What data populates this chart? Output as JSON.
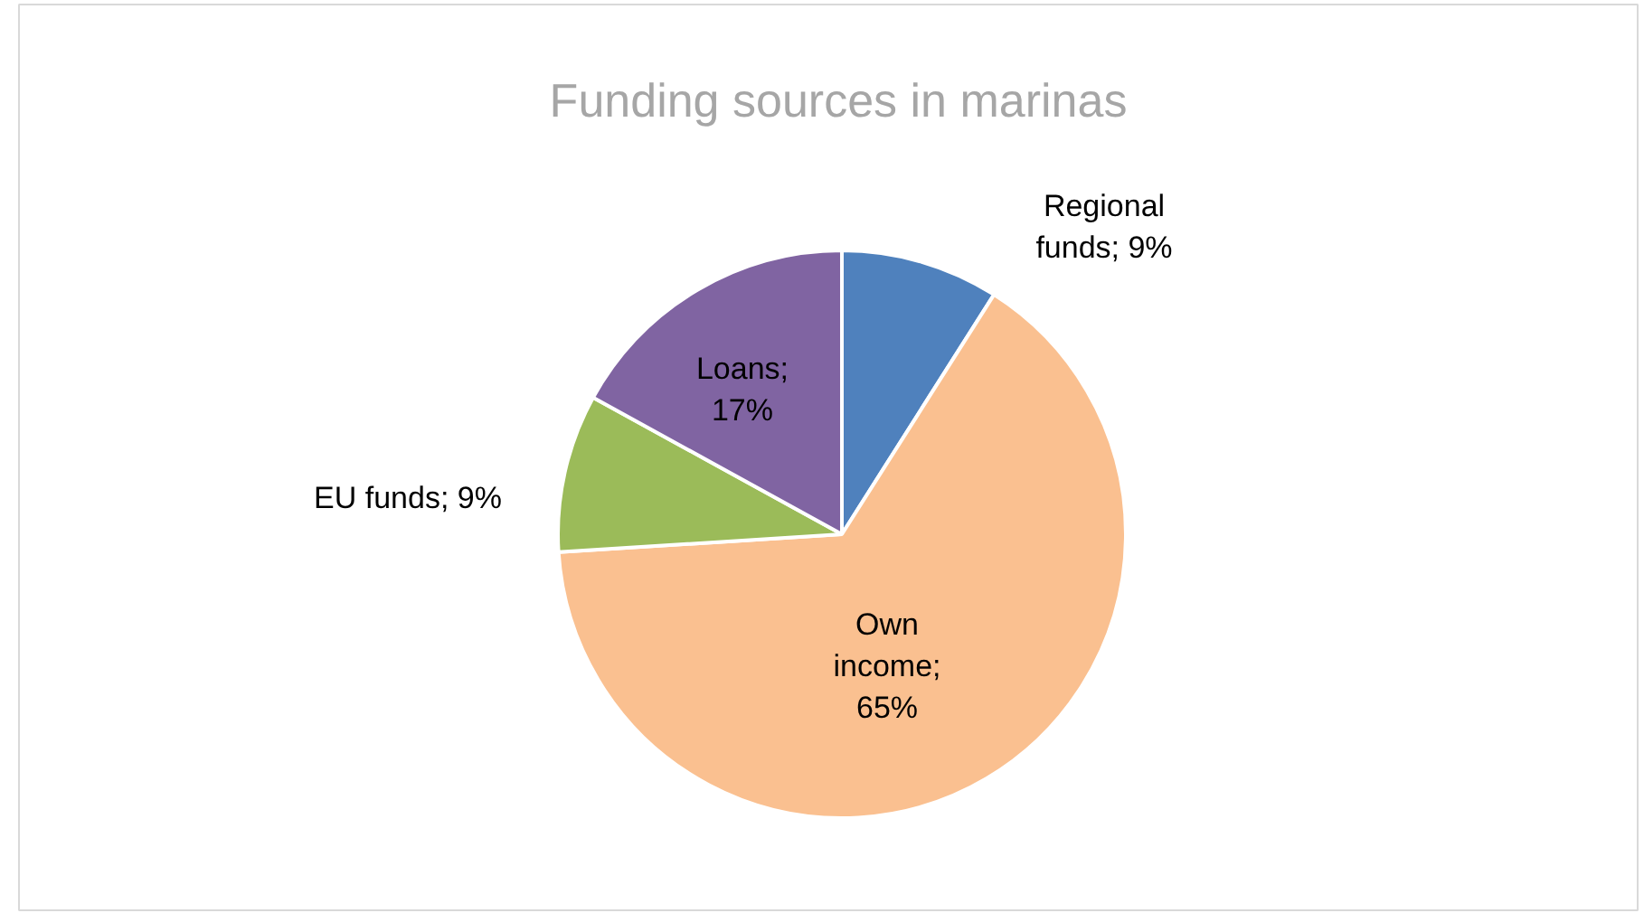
{
  "chart_data": {
    "type": "pie",
    "title": "Funding sources in marinas",
    "categories": [
      "Regional funds",
      "Own income",
      "EU funds",
      "Loans"
    ],
    "values": [
      9,
      65,
      9,
      17
    ],
    "colors": [
      "#4f81bd",
      "#fac090",
      "#9bbb59",
      "#8064a2"
    ],
    "value_labels": [
      "; 9%",
      "; 65%",
      "; 9%",
      "; 17%"
    ]
  }
}
